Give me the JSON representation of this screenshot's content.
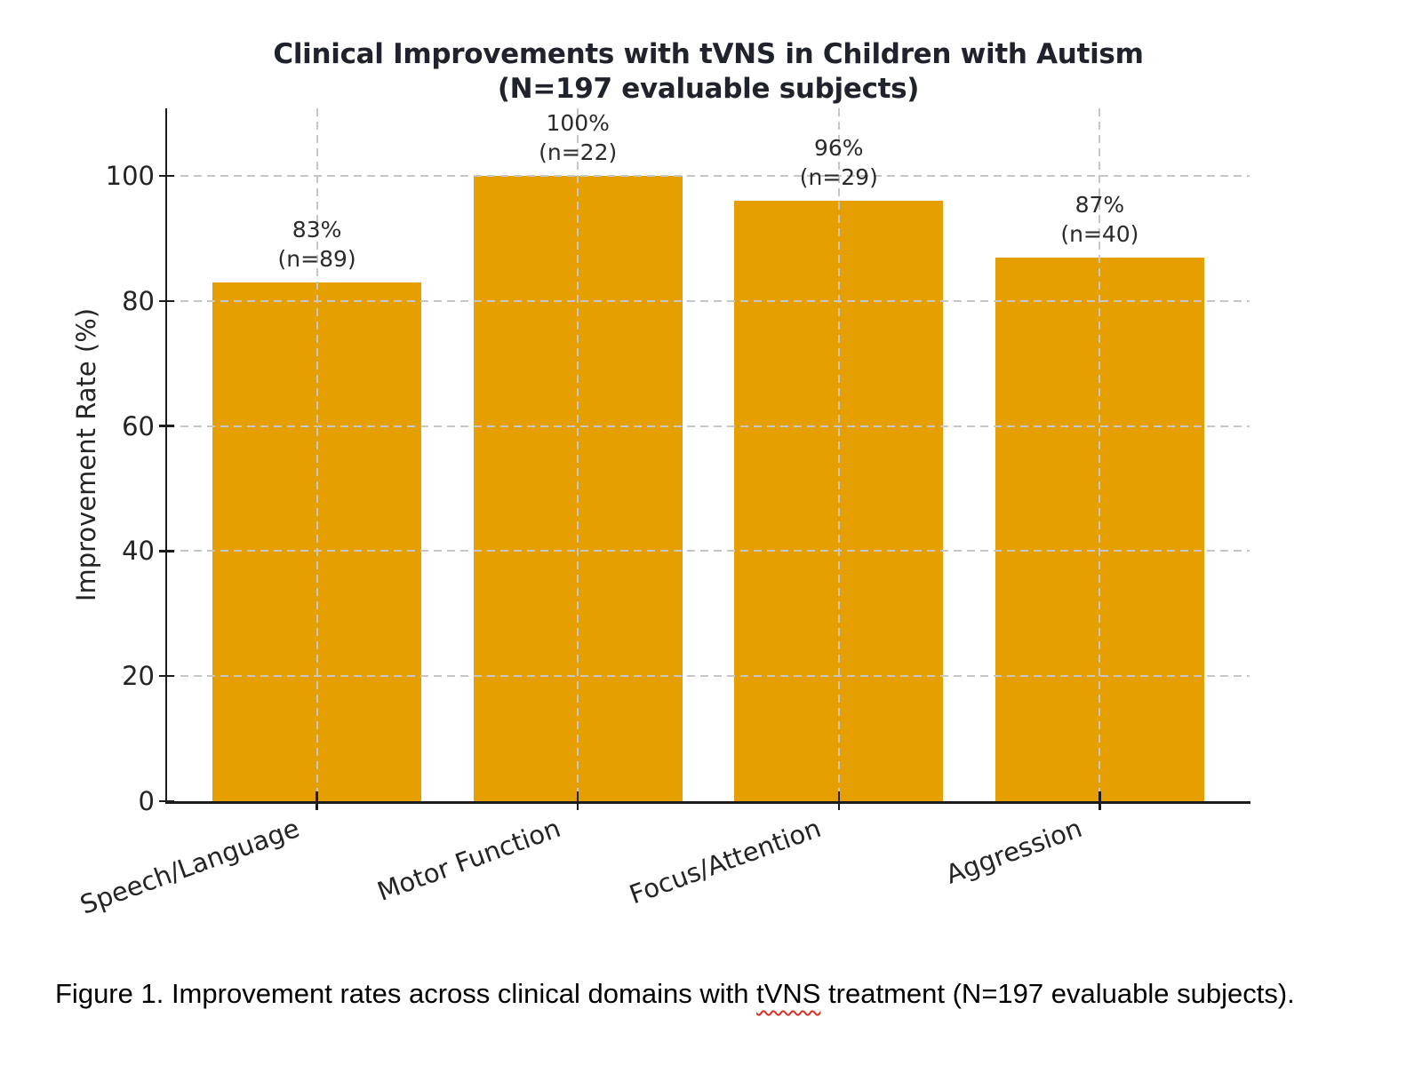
{
  "chart_data": {
    "type": "bar",
    "title": "Clinical Improvements with tVNS in Children with Autism (N=197 evaluable subjects)",
    "title_line1": "Clinical Improvements with tVNS in Children with Autism",
    "title_line2": "(N=197 evaluable subjects)",
    "categories": [
      "Speech/Language",
      "Motor Function",
      "Focus/Attention",
      "Aggression"
    ],
    "values": [
      83,
      100,
      96,
      87
    ],
    "counts": [
      89,
      22,
      29,
      40
    ],
    "bar_labels": [
      [
        "83%",
        "(n=89)"
      ],
      [
        "100%",
        "(n=22)"
      ],
      [
        "96%",
        "(n=29)"
      ],
      [
        "87%",
        "(n=40)"
      ]
    ],
    "xlabel": "",
    "ylabel": "Improvement Rate (%)",
    "yticks": [
      0,
      20,
      40,
      60,
      80,
      100
    ],
    "ylim": [
      0,
      110
    ],
    "grid": true,
    "grid_style": "dashed",
    "legend_position": "none",
    "bar_color": "#E69F00",
    "grid_color": "#c6c6c6",
    "axis_color": "#1c1c1c",
    "text_color": "#242424"
  },
  "caption": {
    "before": "Figure 1. Improvement rates across clinical domains with ",
    "word": "tVNS",
    "after": " treatment (N=197 evaluable subjects).",
    "spellcheck_color": "#d93025"
  }
}
